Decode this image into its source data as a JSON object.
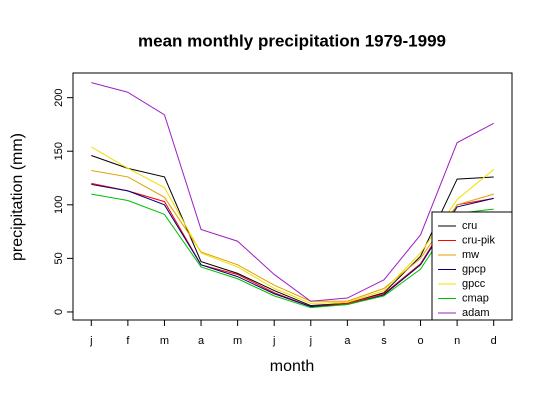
{
  "chart_data": {
    "type": "line",
    "title": "mean monthly precipitation 1979-1999",
    "xlabel": "month",
    "ylabel": "precipitation (mm)",
    "categories": [
      "j",
      "f",
      "m",
      "a",
      "m",
      "j",
      "j",
      "a",
      "s",
      "o",
      "n",
      "d"
    ],
    "series": [
      {
        "name": "cru",
        "color": "#000000",
        "values": [
          146,
          134,
          126,
          47,
          36,
          20,
          6,
          8,
          18,
          52,
          124,
          126
        ]
      },
      {
        "name": "cru-pik",
        "color": "#ff0000",
        "values": [
          120,
          113,
          103,
          44,
          35,
          18,
          5,
          8,
          17,
          45,
          100,
          106
        ]
      },
      {
        "name": "mw",
        "color": "#e0a000",
        "values": [
          132,
          126,
          107,
          56,
          44,
          25,
          10,
          10,
          22,
          50,
          100,
          110
        ]
      },
      {
        "name": "gpcp",
        "color": "#000080",
        "values": [
          119,
          113,
          100,
          44,
          33,
          17,
          5,
          7,
          16,
          44,
          98,
          106
        ]
      },
      {
        "name": "gpcc",
        "color": "#f0e000",
        "values": [
          154,
          134,
          116,
          55,
          42,
          22,
          8,
          9,
          20,
          55,
          105,
          133
        ]
      },
      {
        "name": "cmap",
        "color": "#00c000",
        "values": [
          110,
          104,
          91,
          42,
          31,
          15,
          4,
          7,
          15,
          40,
          92,
          96
        ]
      },
      {
        "name": "adam",
        "color": "#a020c0",
        "values": [
          214,
          205,
          184,
          77,
          66,
          35,
          10,
          13,
          30,
          72,
          158,
          176
        ]
      }
    ],
    "ylim": [
      -7.5,
      223
    ],
    "yticks": [
      0,
      50,
      100,
      150,
      200
    ],
    "grid": false,
    "legend": "bottom-right"
  }
}
